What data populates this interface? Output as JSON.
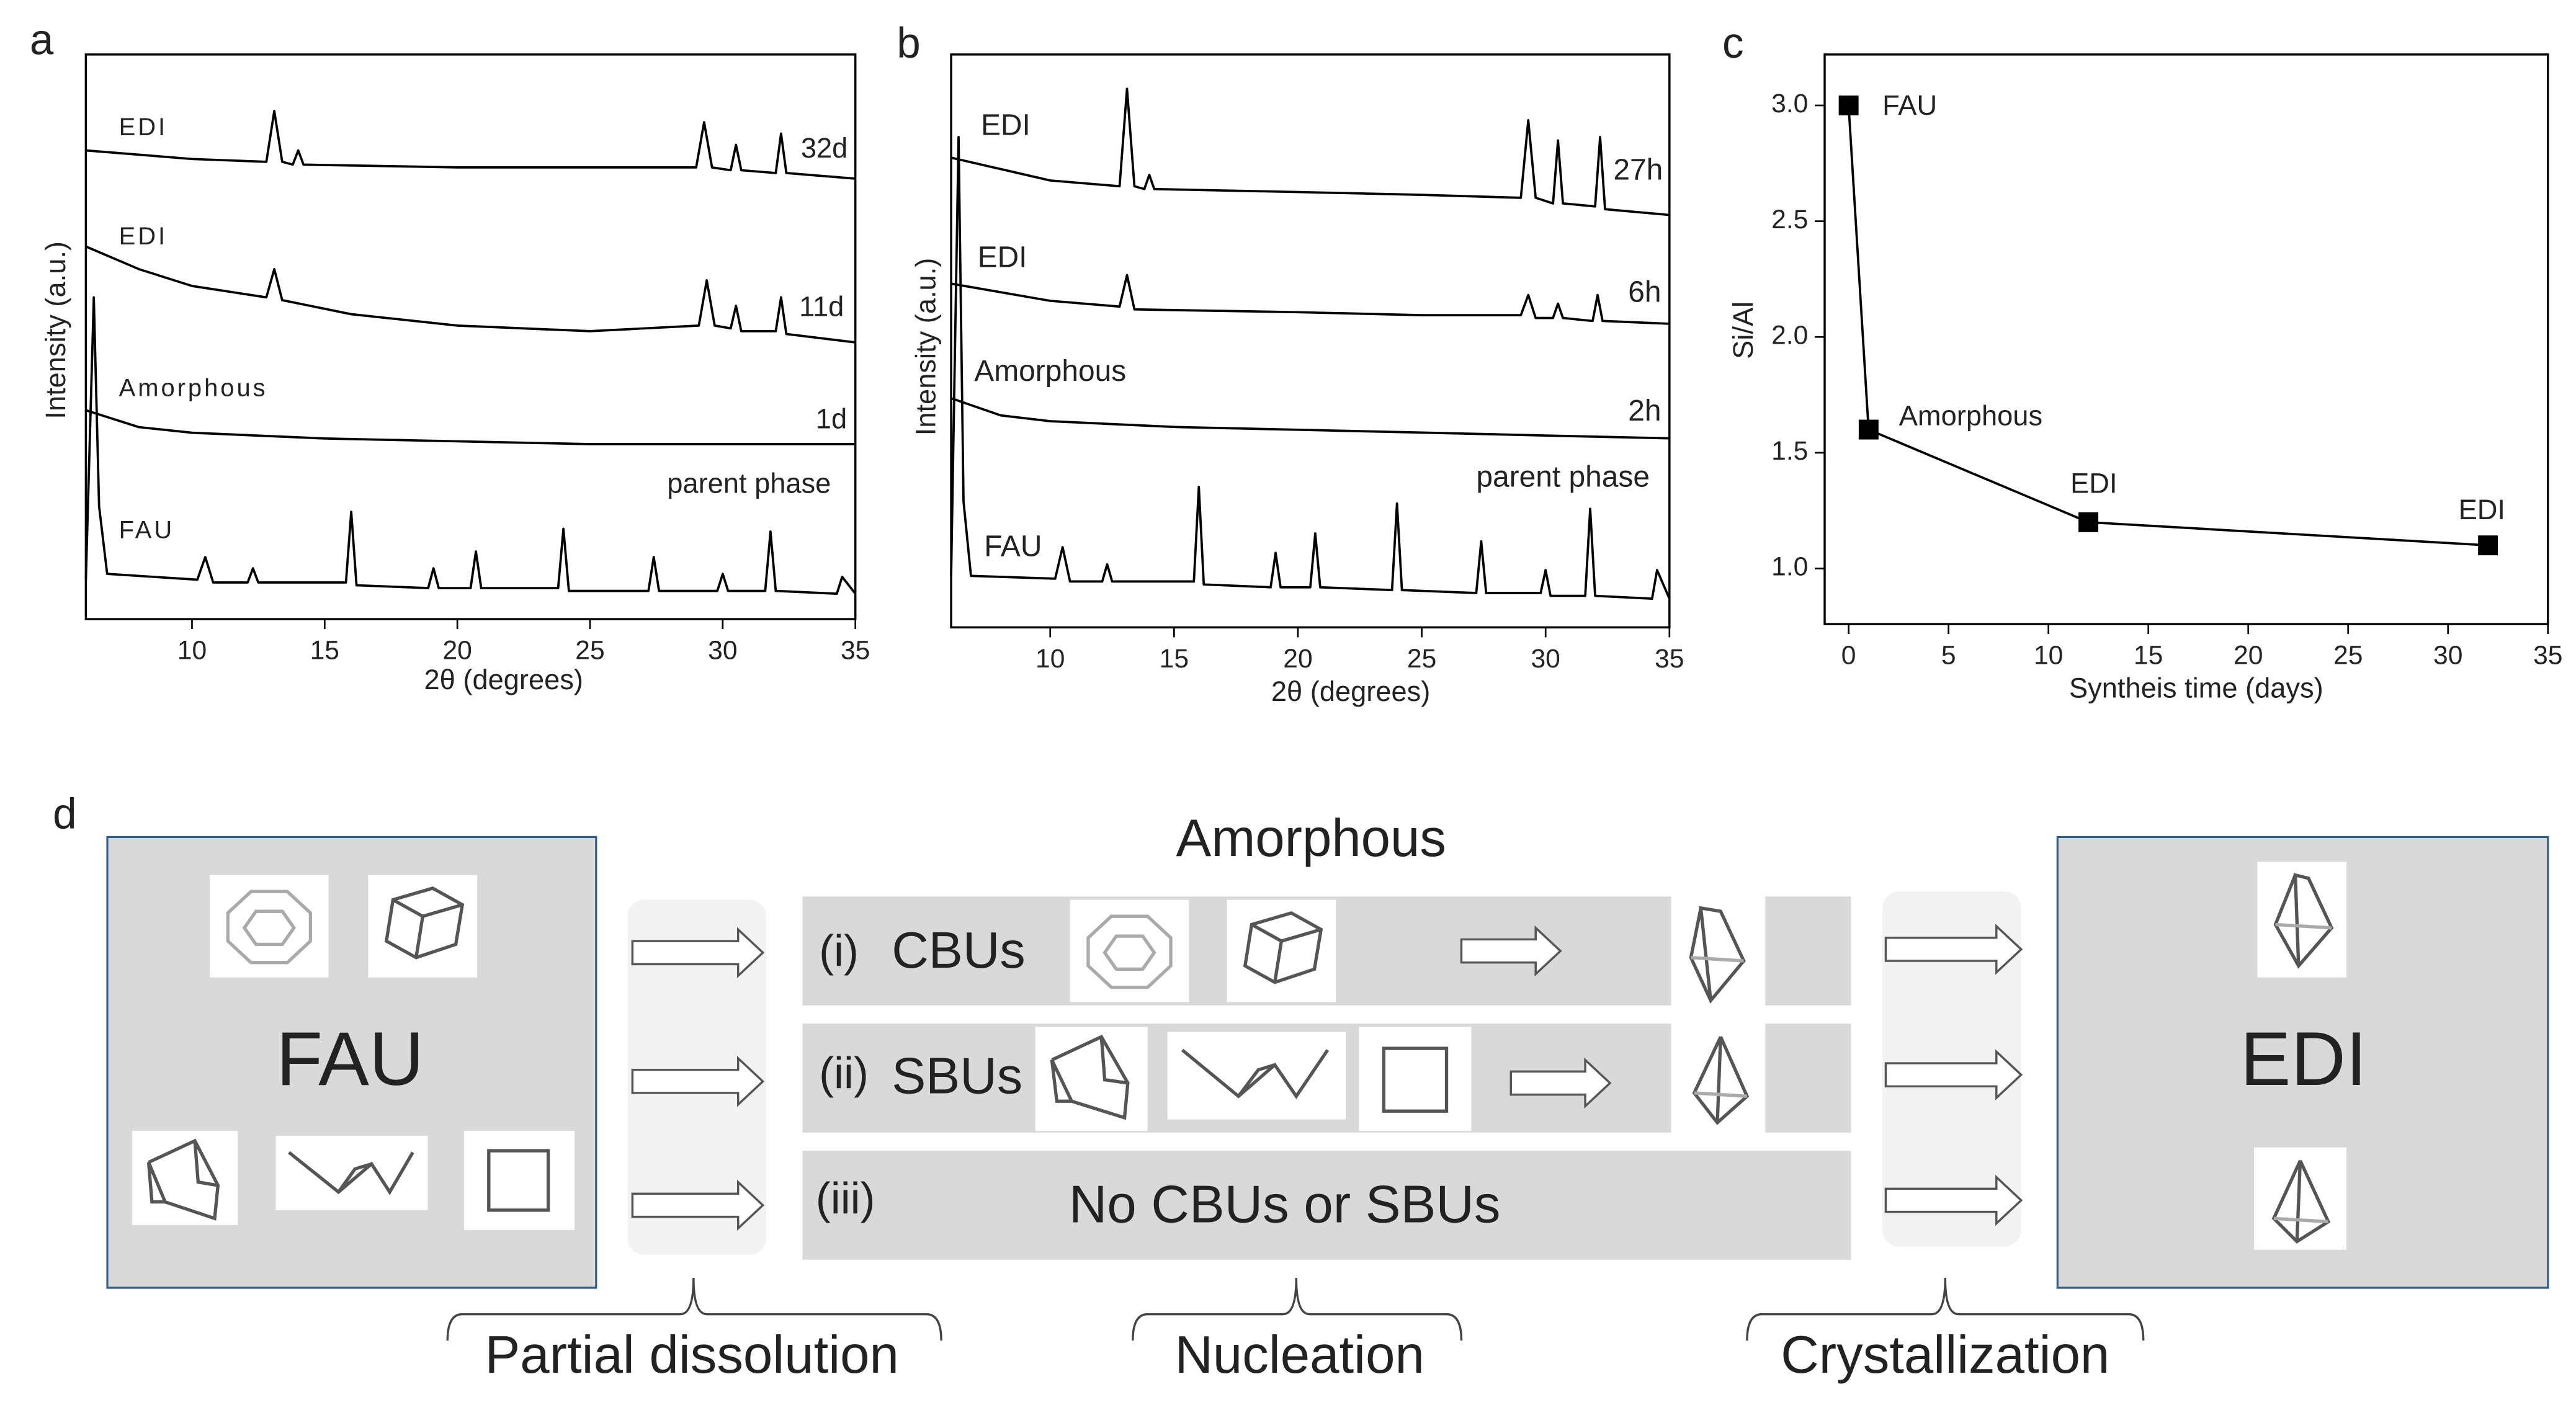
{
  "panel_labels": [
    "a",
    "b",
    "c",
    "d"
  ],
  "chart_data": [
    {
      "type": "line",
      "x_label": "2θ (degrees)",
      "y_label": "Intensity (a.u.)",
      "xlim": [
        6,
        35
      ],
      "ylim": [
        0,
        100
      ],
      "xticks": [
        10,
        15,
        20,
        25,
        30,
        35
      ],
      "color": "#000000",
      "series": [
        {
          "name": "FAU",
          "label": "parent phase",
          "x": [
            6,
            6.3,
            6.5,
            6.8,
            10.2,
            10.5,
            10.8,
            12.1,
            12.3,
            12.5,
            15.8,
            16.0,
            16.2,
            18.9,
            19.1,
            19.3,
            20.5,
            20.7,
            20.9,
            23.8,
            24.0,
            24.2,
            27.2,
            27.4,
            27.6,
            29.8,
            30.0,
            30.2,
            31.6,
            31.8,
            32.0,
            34.3,
            34.5,
            35
          ],
          "values": [
            7,
            57,
            20,
            8,
            7,
            11,
            6.5,
            6.5,
            9,
            6.5,
            6.5,
            19,
            6,
            5.5,
            9,
            5.5,
            5.5,
            12,
            5.5,
            5.5,
            16,
            5,
            5,
            11,
            5,
            5,
            8,
            5,
            5,
            15.5,
            5,
            4.5,
            7.5,
            4.5
          ]
        },
        {
          "name": "Amorphous",
          "label": "1d",
          "x": [
            6,
            8,
            10,
            15,
            20,
            25,
            30,
            35
          ],
          "values": [
            37,
            34,
            33,
            32,
            31.5,
            31,
            31,
            31
          ]
        },
        {
          "name": "EDI",
          "label": "11d",
          "x": [
            6,
            8,
            10,
            12.8,
            13.1,
            13.4,
            16,
            20,
            25,
            29.1,
            29.4,
            29.7,
            30.3,
            30.5,
            30.7,
            32.0,
            32.2,
            32.4,
            35
          ],
          "values": [
            66,
            62,
            59,
            57,
            62,
            56.5,
            54,
            52,
            51,
            52,
            60,
            52,
            51.5,
            55.5,
            51,
            51,
            57,
            50.5,
            49
          ]
        },
        {
          "name": "EDI",
          "label": "32d",
          "x": [
            6,
            10,
            12.8,
            13.1,
            13.4,
            13.8,
            14.0,
            14.2,
            20,
            25,
            29.0,
            29.3,
            29.6,
            30.3,
            30.5,
            30.7,
            32.0,
            32.2,
            32.4,
            35
          ],
          "values": [
            83,
            81.5,
            81,
            90,
            81,
            80.5,
            83,
            80.5,
            80,
            80,
            80,
            88,
            80,
            79.5,
            84,
            79.5,
            79,
            86,
            79,
            78
          ]
        }
      ]
    },
    {
      "type": "line",
      "x_label": "2θ (degrees)",
      "y_label": "Intensity (a.u.)",
      "xlim": [
        6,
        35
      ],
      "ylim": [
        0,
        100
      ],
      "xticks": [
        10,
        15,
        20,
        25,
        30,
        35
      ],
      "color": "#000000",
      "series": [
        {
          "name": "FAU",
          "label": "parent phase",
          "x": [
            6,
            6.3,
            6.5,
            6.8,
            10.2,
            10.5,
            10.8,
            12.1,
            12.3,
            12.5,
            15.8,
            16.0,
            16.2,
            18.9,
            19.1,
            19.3,
            20.5,
            20.7,
            20.9,
            23.8,
            24.0,
            24.2,
            27.2,
            27.4,
            27.6,
            29.8,
            30.0,
            30.2,
            31.6,
            31.8,
            32.0,
            34.3,
            34.5,
            35
          ],
          "values": [
            9,
            85.6,
            22,
            9,
            8.5,
            14,
            8,
            8,
            11,
            8,
            8,
            24.5,
            7.5,
            7,
            13,
            7,
            7,
            16.4,
            7,
            6.5,
            21.6,
            6.5,
            6,
            15,
            6,
            6,
            10,
            5.5,
            5.5,
            20.7,
            5.5,
            5,
            10,
            5
          ]
        },
        {
          "name": "Amorphous",
          "label": "2h",
          "x": [
            6,
            8,
            10,
            15,
            20,
            25,
            30,
            35
          ],
          "values": [
            40,
            37,
            36,
            35,
            34.5,
            34,
            33.5,
            33
          ]
        },
        {
          "name": "EDI",
          "label": "6h",
          "x": [
            6,
            10,
            12.8,
            13.1,
            13.4,
            20,
            25,
            29.0,
            29.3,
            29.6,
            30.3,
            30.5,
            30.7,
            31.9,
            32.1,
            32.3,
            35
          ],
          "values": [
            60,
            57,
            56,
            61.5,
            55.5,
            55,
            54.5,
            54.5,
            58,
            54,
            54,
            56.5,
            54,
            53.5,
            58,
            53.5,
            53
          ]
        },
        {
          "name": "EDI",
          "label": "27h",
          "x": [
            6,
            10,
            12.8,
            13.1,
            13.4,
            13.8,
            14.0,
            14.2,
            20,
            25,
            29.0,
            29.3,
            29.6,
            30.3,
            30.5,
            30.7,
            32.0,
            32.2,
            32.4,
            35
          ],
          "values": [
            82,
            78,
            77,
            94,
            77,
            76.5,
            79,
            76.5,
            76,
            75.5,
            75,
            88.5,
            75,
            74,
            85,
            74,
            73.5,
            85.6,
            73,
            72
          ]
        }
      ]
    },
    {
      "type": "line",
      "markers": true,
      "x_label": "Syntheis time (days)",
      "y_label": "Si/Al",
      "xlim": [
        -1.2,
        35
      ],
      "ylim": [
        0.76,
        3.22
      ],
      "xticks": [
        0,
        5,
        10,
        15,
        20,
        25,
        30,
        35
      ],
      "yticks": [
        {
          "value": 1,
          "label": "1.0"
        },
        1.5,
        {
          "value": 2,
          "label": "2.0"
        },
        2.5,
        {
          "value": 3,
          "label": "3.0"
        }
      ],
      "color": "#000000",
      "x": [
        0,
        1,
        12,
        32
      ],
      "values": [
        3.0,
        1.6,
        1.2,
        1.1
      ],
      "point_labels": [
        "FAU",
        "Amorphous",
        "EDI",
        "EDI"
      ]
    }
  ],
  "diagram": {
    "left": {
      "title": "FAU"
    },
    "right": {
      "title": "EDI"
    },
    "middle": {
      "title": "Amorphous",
      "rows": [
        {
          "index": "(i)",
          "text": "CBUs"
        },
        {
          "index": "(ii)",
          "text": "SBUs"
        },
        {
          "index": "(iii)",
          "text": "No CBUs or SBUs"
        }
      ]
    },
    "stages": [
      "Partial dissolution",
      "Nucleation",
      "Crystallization"
    ]
  }
}
